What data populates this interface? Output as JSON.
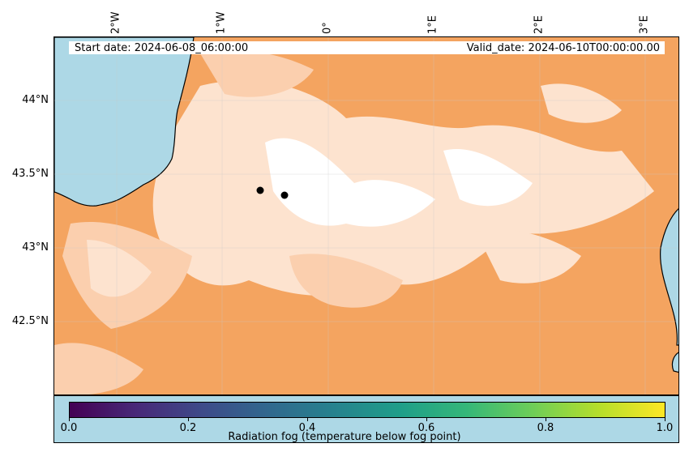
{
  "map": {
    "start_date": "Start date: 2024-06-08_06:00:00",
    "valid_date": "Valid_date: 2024-06-10T00:00:00.00",
    "lon_labels": [
      "2°W",
      "1°W",
      "0°",
      "1°E",
      "2°E",
      "3°E"
    ],
    "lat_labels": [
      "44°N",
      "43.5°N",
      "43°N",
      "42.5°N"
    ],
    "colors": {
      "sea": "#add8e6",
      "fog_zero": "#f4a460",
      "fog_light": "#fde3cf",
      "fog_mid": "#fbcfae",
      "coast": "#000000",
      "marker": "#000000"
    },
    "markers": [
      {
        "name": "station-marker-1"
      },
      {
        "name": "station-marker-2"
      }
    ],
    "gridlines": true
  },
  "colorbar": {
    "label": "Radiation fog (temperature below fog point)",
    "ticks": [
      "0.0",
      "0.2",
      "0.4",
      "0.6",
      "0.8",
      "1.0"
    ],
    "range": [
      0.0,
      1.0
    ],
    "colormap": "viridis"
  }
}
